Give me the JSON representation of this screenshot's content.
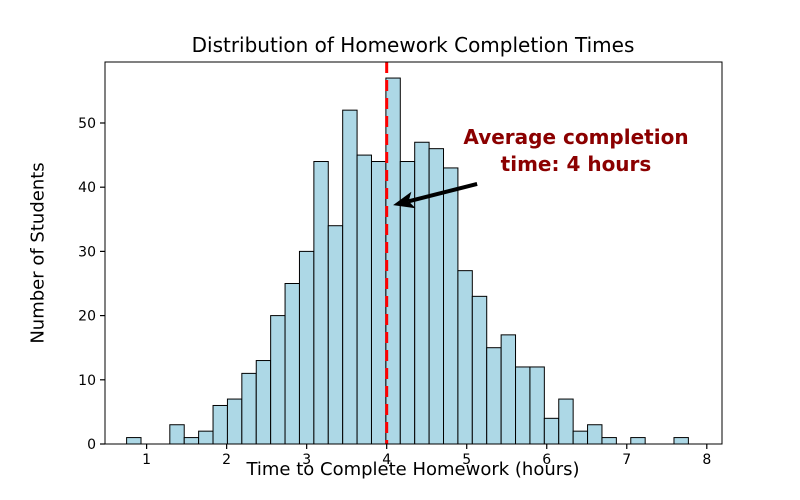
{
  "chart_data": {
    "type": "histogram",
    "title": "Distribution of Homework Completion Times",
    "xlabel": "Time to Complete Homework (hours)",
    "ylabel": "Number of Students",
    "bins": {
      "start": 0.75,
      "width": 0.18
    },
    "counts": [
      1,
      0,
      0,
      3,
      1,
      2,
      6,
      7,
      11,
      13,
      20,
      25,
      30,
      44,
      34,
      52,
      45,
      44,
      57,
      44,
      47,
      46,
      43,
      27,
      23,
      15,
      17,
      12,
      12,
      4,
      7,
      2,
      3,
      1,
      0,
      1,
      0,
      0,
      1
    ],
    "x_ticks": [
      1,
      2,
      3,
      4,
      5,
      6,
      7,
      8
    ],
    "y_ticks": [
      0,
      10,
      20,
      30,
      40,
      50
    ],
    "xlim": [
      0.48,
      8.19
    ],
    "ylim": [
      0,
      59.5
    ],
    "grid": false,
    "legend": null,
    "mean_line": {
      "x": 4,
      "style": "dashed",
      "color": "#ff0000",
      "width": 3
    },
    "annotation": {
      "text_line1": "Average completion",
      "text_line2": "time: 4 hours",
      "color": "#8b0000",
      "arrow_color": "#000000",
      "arrow_from": [
        5.13,
        40.5
      ],
      "arrow_to": [
        4.08,
        37.2
      ]
    },
    "colors": {
      "bar_fill": "#add8e6",
      "bar_edge": "#000000",
      "axis": "#000000",
      "background": "#ffffff"
    }
  }
}
